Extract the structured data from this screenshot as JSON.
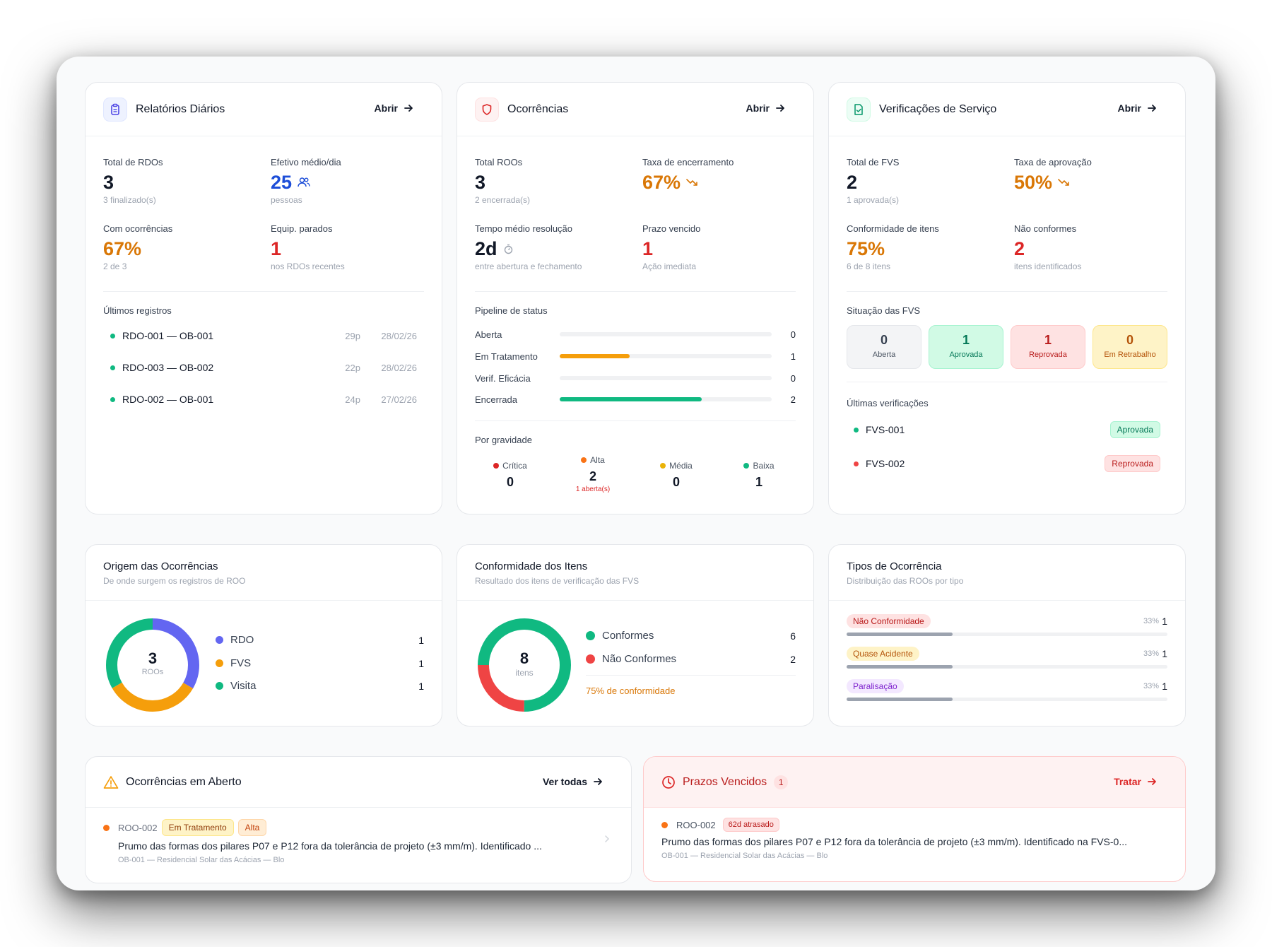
{
  "rdo": {
    "title": "Relatórios Diários",
    "open": "Abrir",
    "total_label": "Total de RDOs",
    "total_value": "3",
    "total_sub": "3 finalizado(s)",
    "efetivo_label": "Efetivo médio/dia",
    "efetivo_value": "25",
    "efetivo_sub": "pessoas",
    "ocorr_label": "Com ocorrências",
    "ocorr_value": "67%",
    "ocorr_sub": "2 de 3",
    "equip_label": "Equip. parados",
    "equip_value": "1",
    "equip_sub": "nos RDOs recentes",
    "recent_label": "Últimos registros",
    "recent": [
      {
        "name": "RDO-001 — OB-001",
        "people": "29p",
        "date": "28/02/26"
      },
      {
        "name": "RDO-003 — OB-002",
        "people": "22p",
        "date": "28/02/26"
      },
      {
        "name": "RDO-002 — OB-001",
        "people": "24p",
        "date": "27/02/26"
      }
    ]
  },
  "roo": {
    "title": "Ocorrências",
    "open": "Abrir",
    "total_label": "Total ROOs",
    "total_value": "3",
    "total_sub": "2 encerrada(s)",
    "taxa_label": "Taxa de encerramento",
    "taxa_value": "67%",
    "tempo_label": "Tempo médio resolução",
    "tempo_value": "2d",
    "tempo_sub": "entre abertura e fechamento",
    "prazo_label": "Prazo vencido",
    "prazo_value": "1",
    "prazo_sub": "Ação imediata",
    "pipeline_label": "Pipeline de status",
    "pipeline": [
      {
        "label": "Aberta",
        "count": "0",
        "fraction": 0
      },
      {
        "label": "Em Tratamento",
        "count": "1",
        "fraction": 0.33
      },
      {
        "label": "Verif. Eficácia",
        "count": "0",
        "fraction": 0
      },
      {
        "label": "Encerrada",
        "count": "2",
        "fraction": 0.67
      }
    ],
    "severity_label": "Por gravidade",
    "severity": [
      {
        "label": "Crítica",
        "value": "0",
        "sub": ""
      },
      {
        "label": "Alta",
        "value": "2",
        "sub": "1 aberta(s)"
      },
      {
        "label": "Média",
        "value": "0",
        "sub": ""
      },
      {
        "label": "Baixa",
        "value": "1",
        "sub": ""
      }
    ]
  },
  "fvs": {
    "title": "Verificações de Serviço",
    "open": "Abrir",
    "total_label": "Total de FVS",
    "total_value": "2",
    "total_sub": "1 aprovada(s)",
    "taxa_label": "Taxa de aprovação",
    "taxa_value": "50%",
    "conf_label": "Conformidade de itens",
    "conf_value": "75%",
    "conf_sub": "6 de 8 itens",
    "nc_label": "Não conformes",
    "nc_value": "2",
    "nc_sub": "itens identificados",
    "situacao_label": "Situação das FVS",
    "situacao": [
      {
        "value": "0",
        "label": "Aberta"
      },
      {
        "value": "1",
        "label": "Aprovada"
      },
      {
        "value": "1",
        "label": "Reprovada"
      },
      {
        "value": "0",
        "label": "Em Retrabalho"
      }
    ],
    "recent_label": "Últimas verificações",
    "recent": [
      {
        "name": "FVS-001",
        "status": "Aprovada"
      },
      {
        "name": "FVS-002",
        "status": "Reprovada"
      }
    ]
  },
  "origem": {
    "title": "Origem das Ocorrências",
    "subtitle": "De onde surgem os registros de ROO",
    "center_value": "3",
    "center_label": "ROOs",
    "items": [
      {
        "label": "RDO",
        "count": "1",
        "value": 1,
        "color": "#6366f1"
      },
      {
        "label": "FVS",
        "count": "1",
        "value": 1,
        "color": "#f59e0b"
      },
      {
        "label": "Visita",
        "count": "1",
        "value": 1,
        "color": "#10b981"
      }
    ]
  },
  "conformidade": {
    "title": "Conformidade dos Itens",
    "subtitle": "Resultado dos itens de verificação das FVS",
    "center_value": "8",
    "center_label": "itens",
    "items": [
      {
        "label": "Conformes",
        "count": "6",
        "value": 6,
        "color": "#10b981"
      },
      {
        "label": "Não Conformes",
        "count": "2",
        "value": 2,
        "color": "#ef4444"
      }
    ],
    "summary": "75% de conformidade"
  },
  "tipos": {
    "title": "Tipos de Ocorrência",
    "subtitle": "Distribuição das ROOs por tipo",
    "items": [
      {
        "label": "Não Conformidade",
        "pct": "33%",
        "count": "1",
        "fraction": 0.33
      },
      {
        "label": "Quase Acidente",
        "pct": "33%",
        "count": "1",
        "fraction": 0.33
      },
      {
        "label": "Paralisação",
        "pct": "33%",
        "count": "1",
        "fraction": 0.33
      }
    ]
  },
  "abertas": {
    "title": "Ocorrências em Aberto",
    "link": "Ver todas",
    "item": {
      "code": "ROO-002",
      "status": "Em Tratamento",
      "severity": "Alta",
      "text": "Prumo das formas dos pilares P07 e P12 fora da tolerância de projeto (±3 mm/m). Identificado ...",
      "location": "OB-001 — Residencial Solar das Acácias — Blo"
    }
  },
  "vencidos": {
    "title": "Prazos Vencidos",
    "count": "1",
    "link": "Tratar",
    "item": {
      "code": "ROO-002",
      "late": "62d atrasado",
      "text": "Prumo das formas dos pilares P07 e P12 fora da tolerância de projeto (±3 mm/m). Identificado na FVS-0...",
      "location": "OB-001 — Residencial Solar das Acácias — Blo"
    }
  },
  "colors": {
    "accent_green": "#10b981",
    "accent_orange": "#f59e0b",
    "accent_red": "#dc2626",
    "accent_blue": "#1d4ed8"
  }
}
